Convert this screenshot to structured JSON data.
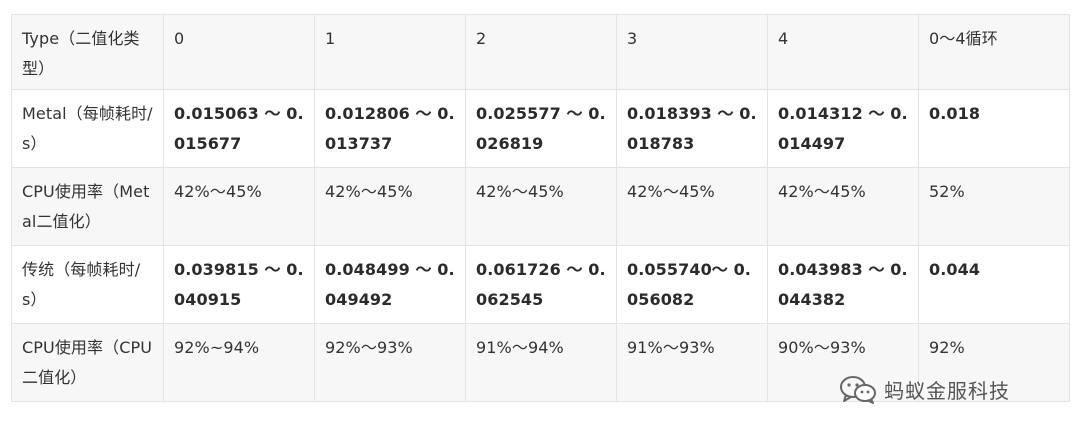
{
  "table": {
    "headers": [
      "Type（二值化类型）",
      "0",
      "1",
      "2",
      "3",
      "4",
      "0～4循环"
    ],
    "rows": [
      {
        "label": "Metal（每帧耗时/s）",
        "cells": [
          "0.015063 ～ 0.015677",
          "0.012806 ～ 0.013737",
          "0.025577 ～ 0.026819",
          "0.018393 ～ 0.018783",
          "0.014312 ～ 0.014497",
          "0.018"
        ]
      },
      {
        "label": "CPU使用率（Metal二值化）",
        "cells": [
          "42%～45%",
          "42%～45%",
          "42%～45%",
          "42%～45%",
          "42%～45%",
          "52%"
        ]
      },
      {
        "label": "传统（每帧耗时/s）",
        "cells": [
          "0.039815 ～ 0.040915",
          "0.048499 ～ 0.049492",
          "0.061726 ～ 0.062545",
          "0.055740～ 0.056082",
          "0.043983 ～ 0.044382",
          "0.044"
        ]
      },
      {
        "label": "CPU使用率（CPU二值化）",
        "cells": [
          "92%~94%",
          "92%～93%",
          "91%～94%",
          "91%～93%",
          "90%～93%",
          "92%"
        ]
      }
    ]
  },
  "watermark": {
    "text": "蚂蚁金服科技",
    "icon": "wechat-icon"
  }
}
